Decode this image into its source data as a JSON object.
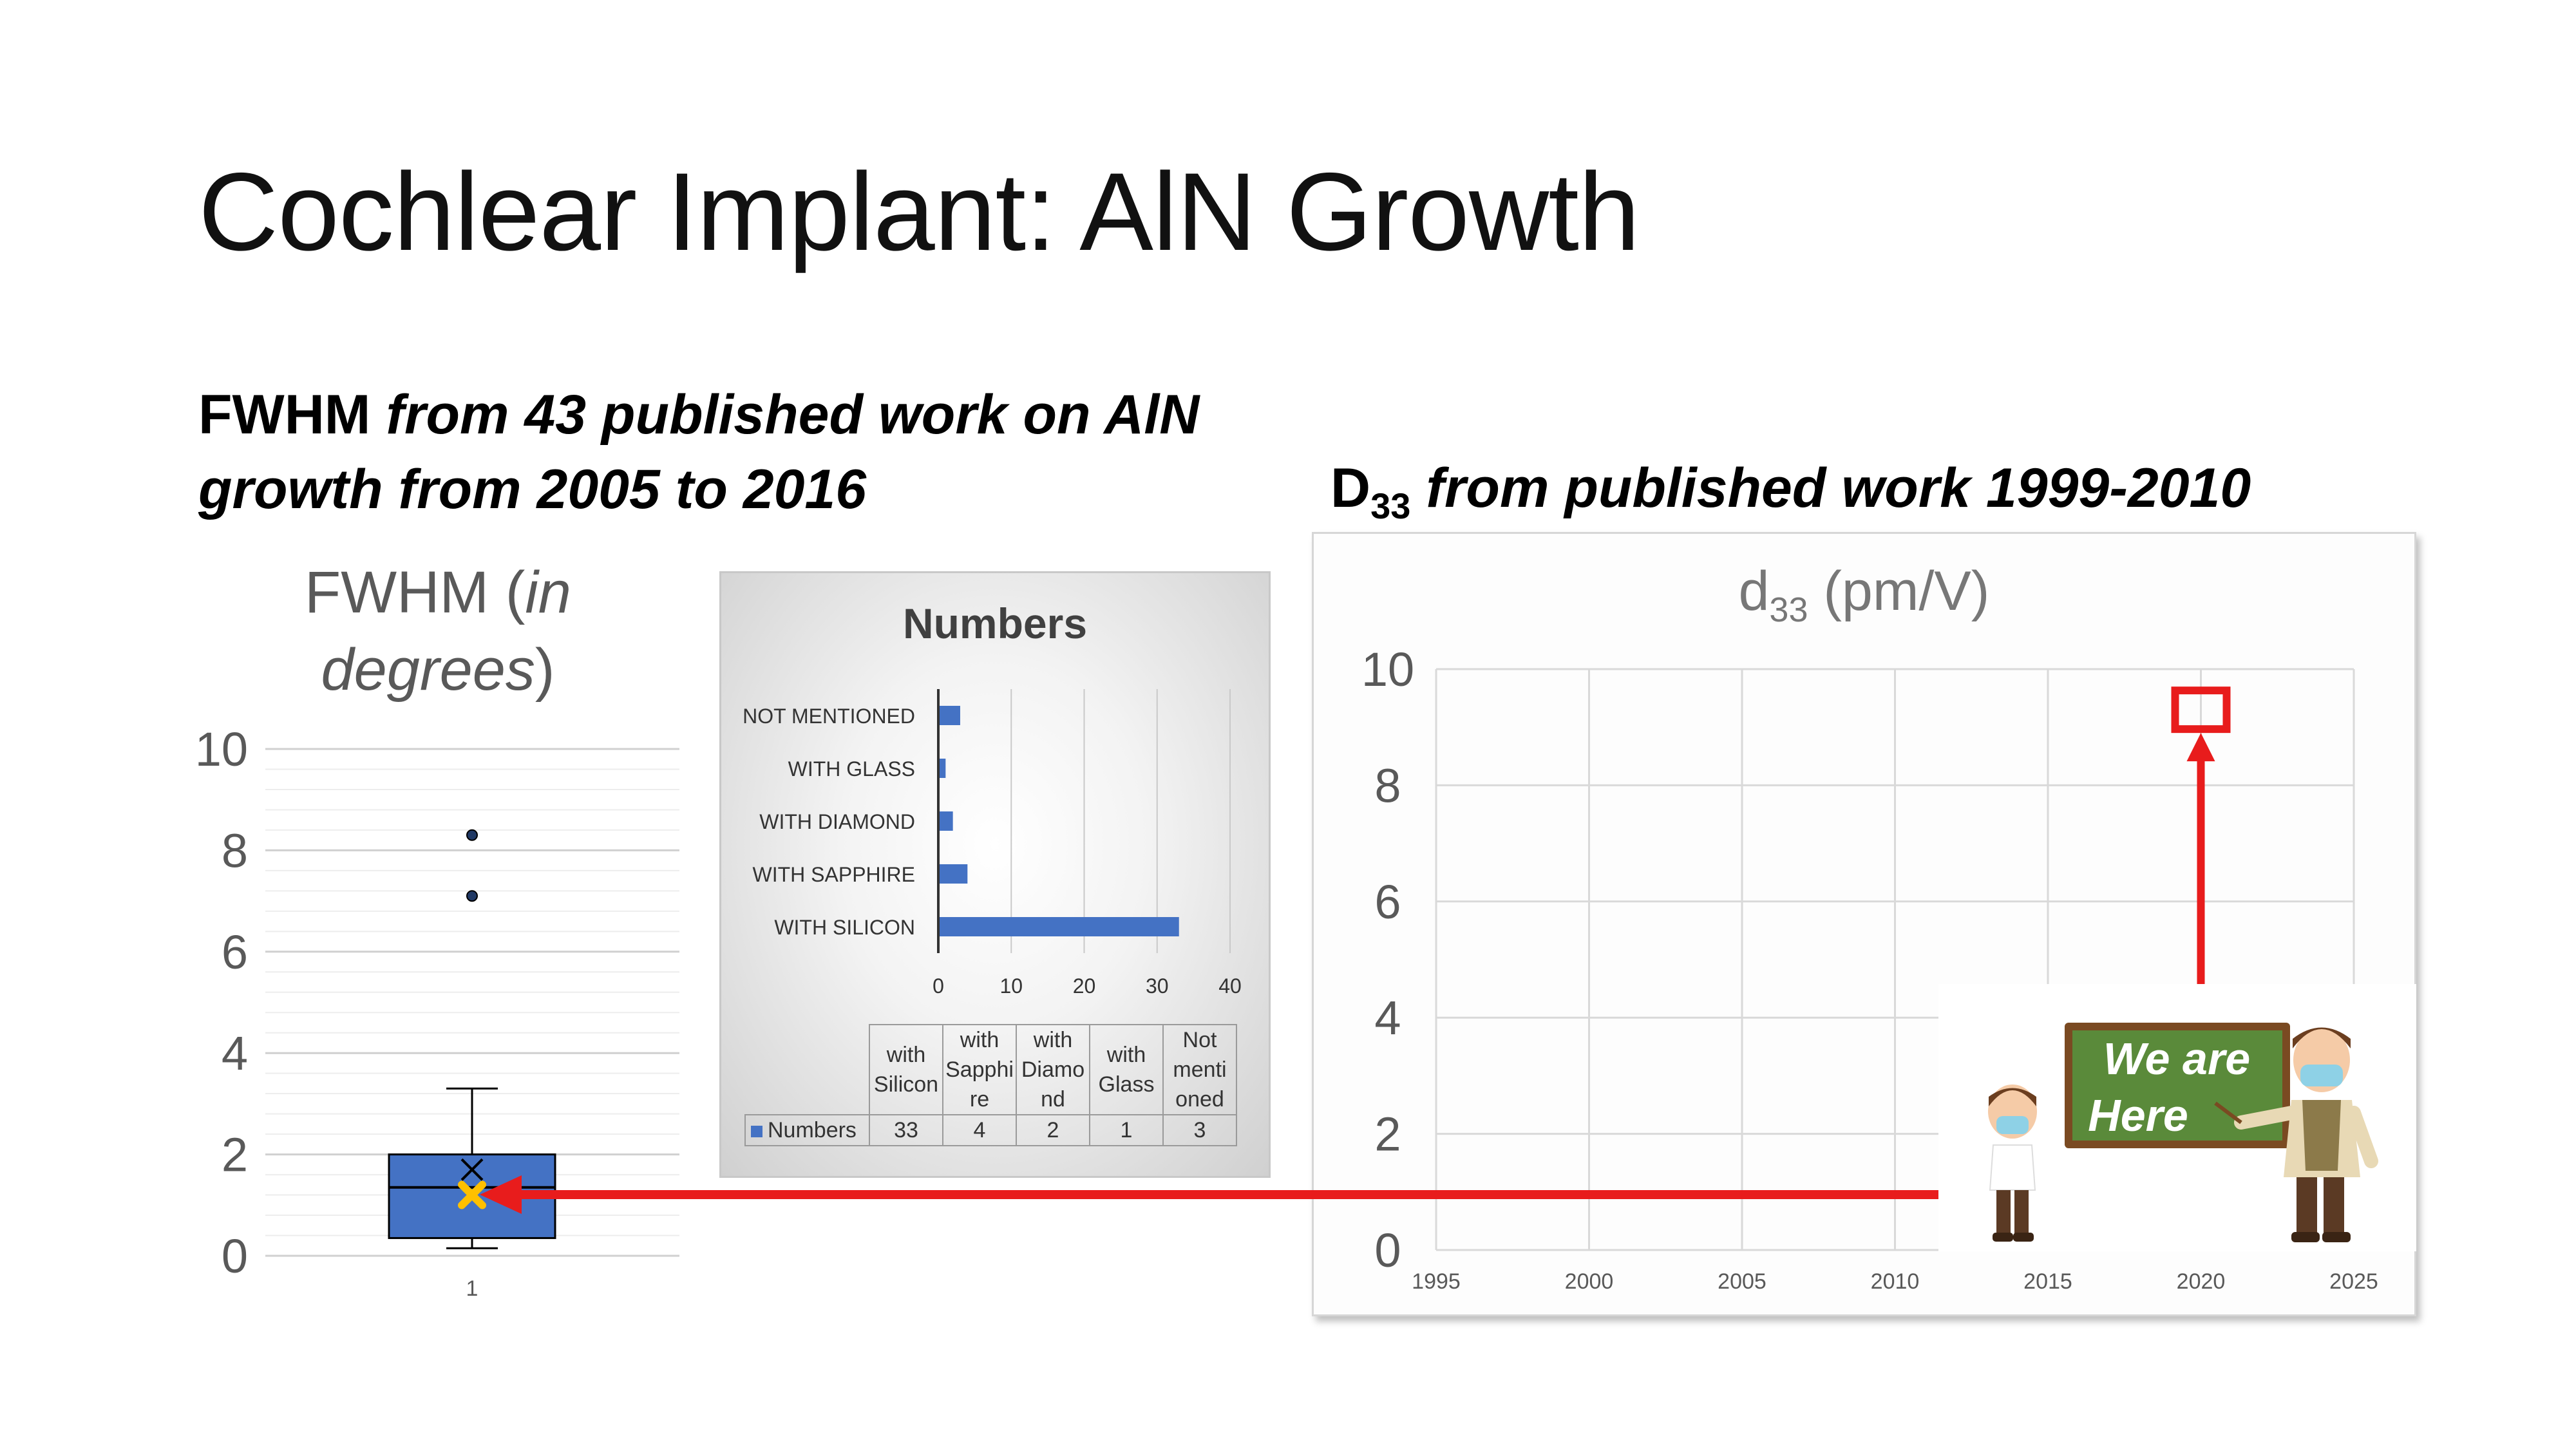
{
  "slide": {
    "title": "Cochlear Implant: AlN Growth",
    "left_heading": {
      "bold": "FWHM",
      "italic_line1": "from 43 published work on AlN",
      "italic_line2": "growth from 2005 to 2016"
    },
    "right_heading": {
      "lead": "D",
      "sub": "33",
      "italic": "from published work 1999-2010"
    },
    "sign_text_line1": "We are",
    "sign_text_line2": "Here"
  },
  "colors": {
    "box_fill": "#4472c4",
    "bar_fill": "#4472c4",
    "arrow": "#e81c1c",
    "mean_marker": "#ffc000",
    "sign_board": "#5a8a3a"
  },
  "chart_data": [
    {
      "type": "box",
      "title_plain": "FWHM (",
      "title_italic1": "in",
      "title_italic2": "degrees",
      "title_end": ")",
      "y_ticks": [
        "0",
        "2",
        "4",
        "6",
        "8",
        "10"
      ],
      "ylim": [
        0,
        10
      ],
      "category": "1",
      "box": {
        "min": 0.15,
        "q1": 0.35,
        "median": 1.35,
        "q3": 2.0,
        "max": 3.3,
        "mean": 1.7,
        "highlight": 1.2
      },
      "outliers": [
        8.3,
        7.1
      ]
    },
    {
      "type": "bar",
      "orientation": "horizontal",
      "title": "Numbers",
      "categories": [
        "NOT MENTIONED",
        "WITH GLASS",
        "WITH DIAMOND",
        "WITH SAPPHIRE",
        "WITH SILICON"
      ],
      "values": [
        3,
        1,
        2,
        4,
        33
      ],
      "x_ticks": [
        "0",
        "10",
        "20",
        "30",
        "40"
      ],
      "xlim": [
        0,
        40
      ],
      "table": {
        "headers": [
          [
            "with",
            "Silicon"
          ],
          [
            "with",
            "Sapphi",
            "re"
          ],
          [
            "with",
            "Diamo",
            "nd"
          ],
          [
            "with",
            "Glass"
          ],
          [
            "Not",
            "menti",
            "oned"
          ]
        ],
        "series_name": "Numbers",
        "values": [
          "33",
          "4",
          "2",
          "1",
          "3"
        ]
      }
    },
    {
      "type": "scatter",
      "title_lead": "d",
      "title_sub": "33",
      "title_unit": " (pm/V)",
      "x_ticks": [
        "1995",
        "2000",
        "2005",
        "2010",
        "2015",
        "2020",
        "2025"
      ],
      "y_ticks": [
        "0",
        "2",
        "4",
        "6",
        "8",
        "10"
      ],
      "xlim": [
        1995,
        2025
      ],
      "ylim": [
        0,
        10
      ],
      "marker": {
        "x": 2020,
        "y": 9.3,
        "arrow_from_y": 4.5
      }
    }
  ]
}
